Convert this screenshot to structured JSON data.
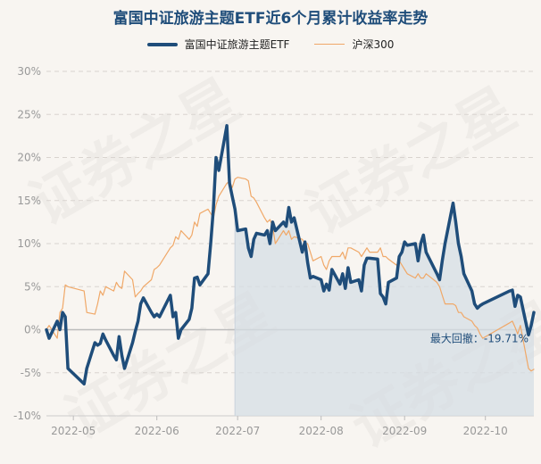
{
  "chart_data": {
    "type": "line",
    "title": "富国中证旅游主题ETF近6个月累计收益率走势",
    "xlabel": "",
    "ylabel": "",
    "ylim": [
      -10,
      30
    ],
    "yticks": [
      "-10%",
      "-5%",
      "0%",
      "5%",
      "10%",
      "15%",
      "20%",
      "25%",
      "30%"
    ],
    "ytick_values": [
      -10,
      -5,
      0,
      5,
      10,
      15,
      20,
      25,
      30
    ],
    "xlim": [
      "2022-04-21",
      "2022-10-19"
    ],
    "xticks": [
      "2022-05",
      "2022-06",
      "2022-07",
      "2022-08",
      "2022-09",
      "2022-10"
    ],
    "xtick_dates": [
      "2022-05-01",
      "2022-06-01",
      "2022-07-01",
      "2022-08-01",
      "2022-09-01",
      "2022-10-01"
    ],
    "grid": true,
    "legend_position": "top",
    "annotation": "最大回撤：-19.71%",
    "drawdown_range": [
      "2022-06-30",
      "2022-10-19"
    ],
    "series": [
      {
        "name": "富国中证旅游主题ETF",
        "color": "#1f4d7a",
        "points": [
          [
            "2022-04-21",
            0
          ],
          [
            "2022-04-22",
            -1
          ],
          [
            "2022-04-25",
            1
          ],
          [
            "2022-04-26",
            0
          ],
          [
            "2022-04-27",
            2
          ],
          [
            "2022-04-28",
            1.5
          ],
          [
            "2022-04-29",
            -4.5
          ],
          [
            "2022-05-05",
            -6.3
          ],
          [
            "2022-05-06",
            -4.5
          ],
          [
            "2022-05-09",
            -1.5
          ],
          [
            "2022-05-10",
            -1.8
          ],
          [
            "2022-05-11",
            -1.6
          ],
          [
            "2022-05-12",
            -0.5
          ],
          [
            "2022-05-13",
            -1.2
          ],
          [
            "2022-05-16",
            -3
          ],
          [
            "2022-05-17",
            -3.5
          ],
          [
            "2022-05-18",
            -0.8
          ],
          [
            "2022-05-19",
            -3
          ],
          [
            "2022-05-20",
            -4.5
          ],
          [
            "2022-05-23",
            -1.5
          ],
          [
            "2022-05-24",
            -0.2
          ],
          [
            "2022-05-25",
            1
          ],
          [
            "2022-05-26",
            3
          ],
          [
            "2022-05-27",
            3.7
          ],
          [
            "2022-05-30",
            2
          ],
          [
            "2022-05-31",
            1.5
          ],
          [
            "2022-06-01",
            1.8
          ],
          [
            "2022-06-02",
            1.5
          ],
          [
            "2022-06-06",
            4
          ],
          [
            "2022-06-07",
            1.5
          ],
          [
            "2022-06-08",
            2
          ],
          [
            "2022-06-09",
            -1
          ],
          [
            "2022-06-10",
            0
          ],
          [
            "2022-06-13",
            1.2
          ],
          [
            "2022-06-14",
            2.5
          ],
          [
            "2022-06-15",
            6
          ],
          [
            "2022-06-16",
            6.1
          ],
          [
            "2022-06-17",
            5.2
          ],
          [
            "2022-06-20",
            6.5
          ],
          [
            "2022-06-21",
            10
          ],
          [
            "2022-06-22",
            14
          ],
          [
            "2022-06-23",
            20
          ],
          [
            "2022-06-24",
            18.5
          ],
          [
            "2022-06-27",
            23.7
          ],
          [
            "2022-06-28",
            17
          ],
          [
            "2022-06-29",
            15.5
          ],
          [
            "2022-06-30",
            14
          ],
          [
            "2022-07-01",
            11.5
          ],
          [
            "2022-07-04",
            11.7
          ],
          [
            "2022-07-05",
            9.5
          ],
          [
            "2022-07-06",
            8.5
          ],
          [
            "2022-07-07",
            10.5
          ],
          [
            "2022-07-08",
            11.2
          ],
          [
            "2022-07-11",
            11
          ],
          [
            "2022-07-12",
            11.5
          ],
          [
            "2022-07-13",
            10
          ],
          [
            "2022-07-14",
            12.5
          ],
          [
            "2022-07-15",
            11.5
          ],
          [
            "2022-07-18",
            12.5
          ],
          [
            "2022-07-19",
            12
          ],
          [
            "2022-07-20",
            14.2
          ],
          [
            "2022-07-21",
            12.5
          ],
          [
            "2022-07-22",
            13
          ],
          [
            "2022-07-25",
            9
          ],
          [
            "2022-07-26",
            10.2
          ],
          [
            "2022-07-27",
            7.8
          ],
          [
            "2022-07-28",
            6
          ],
          [
            "2022-07-29",
            6.2
          ],
          [
            "2022-08-01",
            5.8
          ],
          [
            "2022-08-02",
            4.5
          ],
          [
            "2022-08-03",
            5.3
          ],
          [
            "2022-08-04",
            4.6
          ],
          [
            "2022-08-05",
            7
          ],
          [
            "2022-08-08",
            5.3
          ],
          [
            "2022-08-09",
            6.5
          ],
          [
            "2022-08-10",
            4.8
          ],
          [
            "2022-08-11",
            7.2
          ],
          [
            "2022-08-12",
            5.5
          ],
          [
            "2022-08-15",
            5.8
          ],
          [
            "2022-08-16",
            4.5
          ],
          [
            "2022-08-17",
            7.5
          ],
          [
            "2022-08-18",
            8.3
          ],
          [
            "2022-08-19",
            8.3
          ],
          [
            "2022-08-22",
            8.2
          ],
          [
            "2022-08-23",
            4.2
          ],
          [
            "2022-08-24",
            3.8
          ],
          [
            "2022-08-25",
            3
          ],
          [
            "2022-08-26",
            5.5
          ],
          [
            "2022-08-29",
            6
          ],
          [
            "2022-08-30",
            8.5
          ],
          [
            "2022-08-31",
            9
          ],
          [
            "2022-09-01",
            10.2
          ],
          [
            "2022-09-02",
            9.8
          ],
          [
            "2022-09-05",
            10
          ],
          [
            "2022-09-06",
            8
          ],
          [
            "2022-09-07",
            10
          ],
          [
            "2022-09-08",
            11
          ],
          [
            "2022-09-09",
            9
          ],
          [
            "2022-09-13",
            6.5
          ],
          [
            "2022-09-14",
            5.8
          ],
          [
            "2022-09-15",
            8
          ],
          [
            "2022-09-16",
            10
          ],
          [
            "2022-09-19",
            14.7
          ],
          [
            "2022-09-20",
            12.5
          ],
          [
            "2022-09-21",
            10
          ],
          [
            "2022-09-22",
            8.5
          ],
          [
            "2022-09-23",
            6.5
          ],
          [
            "2022-09-26",
            4.5
          ],
          [
            "2022-09-27",
            3
          ],
          [
            "2022-09-28",
            2.5
          ],
          [
            "2022-09-29",
            2.8
          ],
          [
            "2022-09-30",
            3
          ],
          [
            "2022-10-10",
            4.5
          ],
          [
            "2022-10-11",
            4.6
          ],
          [
            "2022-10-12",
            2.7
          ],
          [
            "2022-10-13",
            4
          ],
          [
            "2022-10-14",
            3.8
          ],
          [
            "2022-10-17",
            -0.6
          ],
          [
            "2022-10-18",
            0.5
          ],
          [
            "2022-10-19",
            2
          ]
        ]
      },
      {
        "name": "沪深300",
        "color": "#f0a868",
        "points": [
          [
            "2022-04-21",
            0
          ],
          [
            "2022-04-22",
            0.5
          ],
          [
            "2022-04-25",
            -1
          ],
          [
            "2022-04-26",
            2
          ],
          [
            "2022-04-27",
            2.5
          ],
          [
            "2022-04-28",
            5.2
          ],
          [
            "2022-04-29",
            5
          ],
          [
            "2022-05-05",
            4.5
          ],
          [
            "2022-05-06",
            2
          ],
          [
            "2022-05-09",
            1.8
          ],
          [
            "2022-05-10",
            3
          ],
          [
            "2022-05-11",
            4.5
          ],
          [
            "2022-05-12",
            4
          ],
          [
            "2022-05-13",
            5
          ],
          [
            "2022-05-16",
            4.5
          ],
          [
            "2022-05-17",
            5.5
          ],
          [
            "2022-05-18",
            5
          ],
          [
            "2022-05-19",
            4.8
          ],
          [
            "2022-05-20",
            6.8
          ],
          [
            "2022-05-23",
            5.8
          ],
          [
            "2022-05-24",
            3.8
          ],
          [
            "2022-05-25",
            4.2
          ],
          [
            "2022-05-26",
            4.5
          ],
          [
            "2022-05-27",
            5
          ],
          [
            "2022-05-30",
            5.8
          ],
          [
            "2022-05-31",
            7
          ],
          [
            "2022-06-01",
            7.2
          ],
          [
            "2022-06-02",
            7.5
          ],
          [
            "2022-06-06",
            9.5
          ],
          [
            "2022-06-07",
            9.8
          ],
          [
            "2022-06-08",
            10.8
          ],
          [
            "2022-06-09",
            10.5
          ],
          [
            "2022-06-10",
            11.5
          ],
          [
            "2022-06-13",
            10.5
          ],
          [
            "2022-06-14",
            11
          ],
          [
            "2022-06-15",
            12.5
          ],
          [
            "2022-06-16",
            12
          ],
          [
            "2022-06-17",
            13.5
          ],
          [
            "2022-06-20",
            14
          ],
          [
            "2022-06-21",
            13.5
          ],
          [
            "2022-06-22",
            13
          ],
          [
            "2022-06-23",
            14.5
          ],
          [
            "2022-06-24",
            15.5
          ],
          [
            "2022-06-27",
            17
          ],
          [
            "2022-06-28",
            17.2
          ],
          [
            "2022-06-29",
            16.5
          ],
          [
            "2022-06-30",
            17.5
          ],
          [
            "2022-07-01",
            17.7
          ],
          [
            "2022-07-04",
            17.5
          ],
          [
            "2022-07-05",
            17.3
          ],
          [
            "2022-07-06",
            15.5
          ],
          [
            "2022-07-07",
            15.3
          ],
          [
            "2022-07-08",
            14.8
          ],
          [
            "2022-07-11",
            13
          ],
          [
            "2022-07-12",
            12.5
          ],
          [
            "2022-07-13",
            12.8
          ],
          [
            "2022-07-14",
            12
          ],
          [
            "2022-07-15",
            10
          ],
          [
            "2022-07-18",
            11.5
          ],
          [
            "2022-07-19",
            11
          ],
          [
            "2022-07-20",
            11.5
          ],
          [
            "2022-07-21",
            10.5
          ],
          [
            "2022-07-22",
            10.8
          ],
          [
            "2022-07-25",
            10.5
          ],
          [
            "2022-07-26",
            10
          ],
          [
            "2022-07-27",
            10
          ],
          [
            "2022-07-28",
            9
          ],
          [
            "2022-07-29",
            8
          ],
          [
            "2022-08-01",
            8.5
          ],
          [
            "2022-08-02",
            7.5
          ],
          [
            "2022-08-03",
            7
          ],
          [
            "2022-08-04",
            8
          ],
          [
            "2022-08-05",
            8.5
          ],
          [
            "2022-08-08",
            8.5
          ],
          [
            "2022-08-09",
            9
          ],
          [
            "2022-08-10",
            8.2
          ],
          [
            "2022-08-11",
            9.5
          ],
          [
            "2022-08-12",
            9.5
          ],
          [
            "2022-08-15",
            9
          ],
          [
            "2022-08-16",
            8.5
          ],
          [
            "2022-08-17",
            9
          ],
          [
            "2022-08-18",
            9.5
          ],
          [
            "2022-08-19",
            9
          ],
          [
            "2022-08-22",
            9
          ],
          [
            "2022-08-23",
            9.5
          ],
          [
            "2022-08-24",
            8.5
          ],
          [
            "2022-08-25",
            8.5
          ],
          [
            "2022-08-26",
            8.2
          ],
          [
            "2022-08-29",
            7.5
          ],
          [
            "2022-08-30",
            8
          ],
          [
            "2022-08-31",
            7.5
          ],
          [
            "2022-09-01",
            7
          ],
          [
            "2022-09-02",
            6.5
          ],
          [
            "2022-09-05",
            6
          ],
          [
            "2022-09-06",
            6.5
          ],
          [
            "2022-09-07",
            6
          ],
          [
            "2022-09-08",
            6
          ],
          [
            "2022-09-09",
            6.5
          ],
          [
            "2022-09-13",
            5.5
          ],
          [
            "2022-09-14",
            5
          ],
          [
            "2022-09-15",
            4
          ],
          [
            "2022-09-16",
            3
          ],
          [
            "2022-09-19",
            3
          ],
          [
            "2022-09-20",
            2.8
          ],
          [
            "2022-09-21",
            2
          ],
          [
            "2022-09-22",
            2
          ],
          [
            "2022-09-23",
            1.5
          ],
          [
            "2022-09-26",
            1
          ],
          [
            "2022-09-27",
            0.5
          ],
          [
            "2022-09-28",
            0.2
          ],
          [
            "2022-09-29",
            -0.5
          ],
          [
            "2022-09-30",
            -1
          ],
          [
            "2022-10-10",
            0.8
          ],
          [
            "2022-10-11",
            1
          ],
          [
            "2022-10-12",
            0.3
          ],
          [
            "2022-10-13",
            -0.5
          ],
          [
            "2022-10-14",
            0.5
          ],
          [
            "2022-10-17",
            -4.5
          ],
          [
            "2022-10-18",
            -4.8
          ],
          [
            "2022-10-19",
            -4.6
          ]
        ]
      }
    ]
  }
}
